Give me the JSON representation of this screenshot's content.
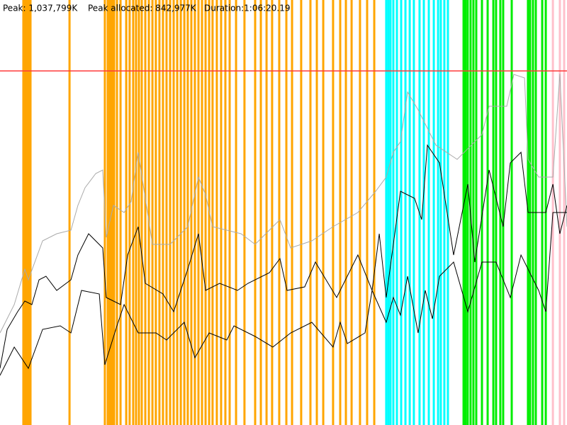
{
  "chart_data": {
    "type": "line",
    "header": [
      "Peak: 1,037,799K",
      "Peak allocated: 842,977K",
      "Duration:1:06:20.19"
    ],
    "xlim": [
      0,
      3980
    ],
    "ylim": [
      0,
      1245600
    ],
    "peak": 1037799,
    "peak_color": "#ff3b3b",
    "events": [
      {
        "color": "#ffa500",
        "x": [
          164,
          174,
          184,
          194,
          204,
          214,
          488,
          736,
          756,
          771,
          786,
          801,
          821,
          846,
          886,
          910,
          935,
          955,
          975,
          995,
          1020,
          1045,
          1070,
          1094,
          1119,
          1144,
          1169,
          1194,
          1219,
          1244,
          1269,
          1294,
          1318,
          1343,
          1368,
          1393,
          1418,
          1443,
          1468,
          1492,
          1522,
          1552,
          1582,
          1612,
          1657,
          1716,
          1791,
          1831,
          1871,
          1910,
          1960,
          2010,
          2050,
          2114,
          2179,
          2224,
          2269,
          2338,
          2388,
          2428,
          2468,
          2527,
          2577,
          2627
        ]
      },
      {
        "color": "#00ffff",
        "x": [
          2711,
          2726,
          2741,
          2761,
          2786,
          2816,
          2846,
          2876,
          2905,
          2945,
          2975,
          3010,
          3045,
          3075,
          3094,
          3119,
          3144
        ]
      },
      {
        "color": "#00ee00",
        "x": [
          3254,
          3268,
          3283,
          3303,
          3323,
          3343,
          3383,
          3423,
          3463,
          3482,
          3512,
          3532,
          3592,
          3706,
          3721,
          3741,
          3761,
          3806,
          3831
        ]
      },
      {
        "color": "#ffc0cb",
        "x": [
          3881,
          3930,
          3960
        ]
      }
    ],
    "series": [
      {
        "color": "#aaaaaa",
        "x": [
          0,
          100,
          174,
          199,
          299,
          398,
          498,
          547,
          597,
          672,
          721,
          746,
          796,
          871,
          920,
          970,
          1020,
          1070,
          1194,
          1318,
          1393,
          1443,
          1492,
          1692,
          1791,
          1965,
          2040,
          2189,
          2338,
          2512,
          2637,
          2711,
          2761,
          2811,
          2861,
          2935,
          3060,
          3209,
          3383,
          3433,
          3557,
          3607,
          3682,
          3707,
          3781,
          3881,
          3930,
          3980
        ],
        "values": [
          269880,
          352920,
          456720,
          425580,
          539760,
          560520,
          570900,
          643560,
          695460,
          736980,
          747360,
          550140,
          643560,
          622800,
          653940,
          799260,
          664320,
          529380,
          529380,
          581280,
          726600,
          674700,
          581280,
          560520,
          529380,
          602040,
          519000,
          539760,
          581280,
          622800,
          685080,
          726600,
          799260,
          830400,
          975720,
          923820,
          820020,
          778500,
          851160,
          934200,
          934200,
          1027620,
          1017240,
          778500,
          726600,
          726600,
          1029000,
          581280
        ]
      },
      {
        "color": "#000000",
        "x": [
          0,
          50,
          124,
          174,
          224,
          274,
          323,
          398,
          498,
          547,
          622,
          721,
          746,
          846,
          896,
          970,
          1020,
          1144,
          1219,
          1318,
          1393,
          1443,
          1542,
          1667,
          1741,
          1891,
          1965,
          2015,
          2139,
          2214,
          2363,
          2512,
          2612,
          2662,
          2711,
          2811,
          2910,
          2960,
          3000,
          3085,
          3184,
          3284,
          3333,
          3433,
          3532,
          3582,
          3657,
          3707,
          3831,
          3881,
          3930,
          3980
        ],
        "values": [
          166080,
          280260,
          332160,
          363300,
          352920,
          425580,
          435960,
          394440,
          425580,
          498240,
          560520,
          519000,
          373680,
          352920,
          498240,
          581280,
          415200,
          384060,
          332160,
          456720,
          560520,
          394440,
          415200,
          394440,
          415200,
          446340,
          487860,
          394440,
          404820,
          477480,
          373680,
          498240,
          394440,
          560520,
          373680,
          685080,
          664320,
          602040,
          820020,
          768120,
          498240,
          705840,
          477480,
          747360,
          581280,
          768120,
          799260,
          622800,
          622800,
          705840,
          560520,
          643560
        ]
      },
      {
        "color": "#000000",
        "x": [
          0,
          100,
          199,
          299,
          423,
          498,
          572,
          697,
          736,
          821,
          871,
          970,
          1095,
          1169,
          1293,
          1368,
          1468,
          1592,
          1642,
          1791,
          1915,
          2040,
          2189,
          2338,
          2388,
          2438,
          2562,
          2612,
          2711,
          2761,
          2811,
          2861,
          2935,
          2985,
          3035,
          3085,
          3184,
          3284,
          3383,
          3482,
          3582,
          3657,
          3781,
          3831,
          3881,
          3980
        ],
        "values": [
          145320,
          228360,
          166080,
          280260,
          290640,
          269880,
          394440,
          384060,
          176460,
          290640,
          352920,
          269880,
          269880,
          249120,
          301020,
          197220,
          269880,
          249120,
          290640,
          259500,
          228360,
          269880,
          301020,
          228360,
          301020,
          238740,
          269880,
          394440,
          301020,
          373680,
          321780,
          435960,
          269880,
          394440,
          311400,
          435960,
          477480,
          332160,
          477480,
          477480,
          373680,
          498240,
          394440,
          332160,
          622800,
          622800
        ]
      }
    ]
  }
}
